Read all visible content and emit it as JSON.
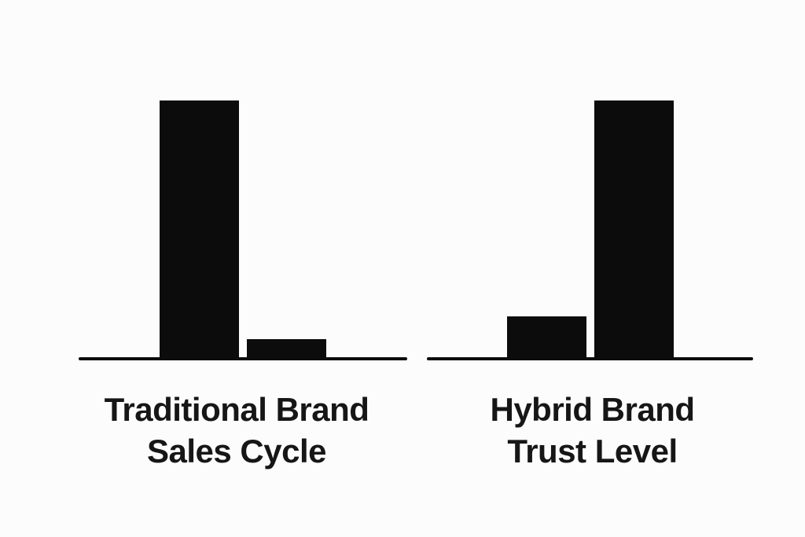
{
  "figure": {
    "background_color": "#fcfcfc",
    "ink_color": "#0c0c0c",
    "text_color": "#161616"
  },
  "chart_data": [
    {
      "type": "bar",
      "title": "Traditional Brand Sales Cycle",
      "title_lines": [
        "Traditional Brand",
        "Sales Cycle"
      ],
      "categories": [
        "",
        ""
      ],
      "values": [
        100,
        7
      ],
      "value_unit": "percent of tallest bar (no numeric labels shown in image)",
      "ylim": [
        0,
        100
      ],
      "xlabel": "",
      "ylabel": "",
      "grid": false,
      "legend": false,
      "axis_style": "single thick black baseline, no ticks, no value labels",
      "bar_color": "#0c0c0c"
    },
    {
      "type": "bar",
      "title": "Hybrid Brand Trust Level",
      "title_lines": [
        "Hybrid Brand",
        "Trust Level"
      ],
      "categories": [
        "",
        ""
      ],
      "values": [
        16,
        100
      ],
      "value_unit": "percent of tallest bar (no numeric labels shown in image)",
      "ylim": [
        0,
        100
      ],
      "xlabel": "",
      "ylabel": "",
      "grid": false,
      "legend": false,
      "axis_style": "single thick black baseline, no ticks, no value labels",
      "bar_color": "#0c0c0c"
    }
  ]
}
